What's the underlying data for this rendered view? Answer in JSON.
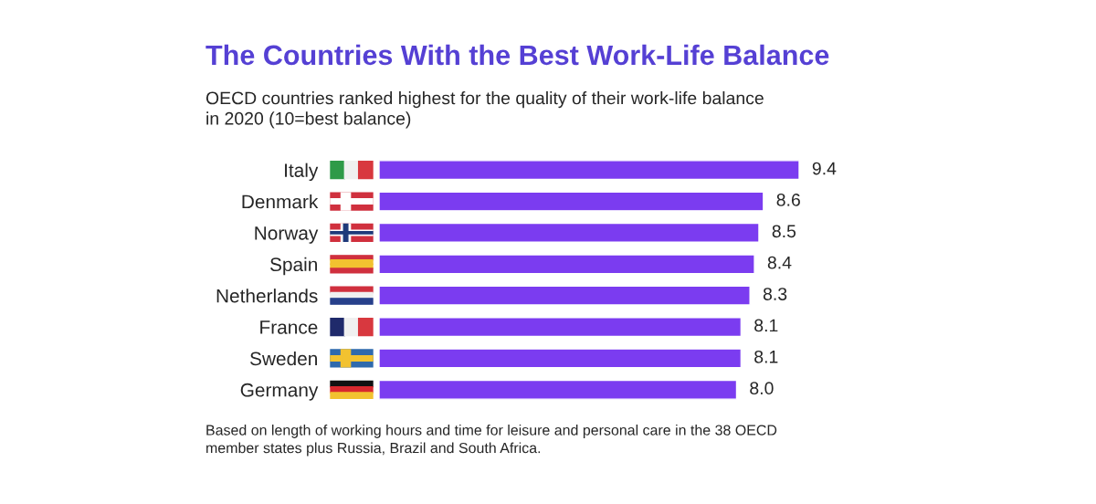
{
  "chart_data": {
    "type": "bar",
    "orientation": "horizontal",
    "title": "The Countries With the Best Work-Life Balance",
    "subtitle": "OECD countries ranked highest for the quality of their work-life balance\nin 2020 (10=best balance)",
    "categories": [
      "Italy",
      "Denmark",
      "Norway",
      "Spain",
      "Netherlands",
      "France",
      "Sweden",
      "Germany"
    ],
    "values": [
      9.4,
      8.6,
      8.5,
      8.4,
      8.3,
      8.1,
      8.1,
      8.0
    ],
    "color": "#7b3cf0",
    "value_labels": [
      "9.4",
      "8.6",
      "8.5",
      "8.4",
      "8.3",
      "8.1",
      "8.1",
      "8.0"
    ],
    "grid": false,
    "legend": false,
    "annotations": [
      "Based on length of working hours and time for leisure and personal care in the 38 OECD\nmember states plus Russia, Brazil and South Africa."
    ]
  }
}
